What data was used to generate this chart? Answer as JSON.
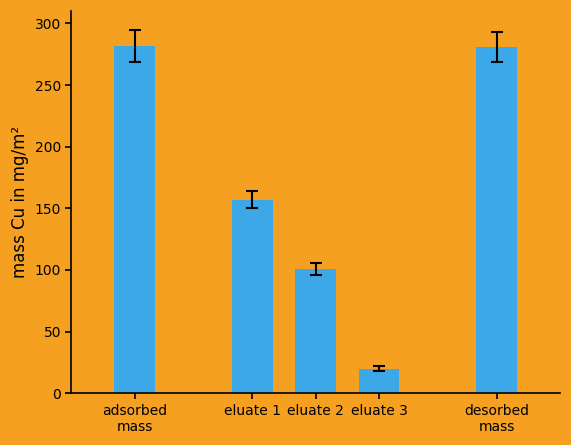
{
  "categories": [
    "adsorbed\nmass",
    "eluate 1",
    "eluate 2",
    "eluate 3",
    "desorbed\nmass"
  ],
  "values": [
    282,
    157,
    101,
    20,
    281
  ],
  "errors": [
    13,
    7,
    5,
    2,
    12
  ],
  "x_positions": [
    0.7,
    2.0,
    2.7,
    3.4,
    4.7
  ],
  "bar_color": "#3DA8E8",
  "background_color": "#F5A020",
  "ylabel": "mass Cu in mg/m²",
  "ylim": [
    0,
    310
  ],
  "yticks": [
    0,
    50,
    100,
    150,
    200,
    250,
    300
  ],
  "bar_width": 0.45,
  "error_capsize": 4,
  "error_linewidth": 1.5,
  "ylabel_fontsize": 12,
  "tick_fontsize": 10,
  "xlim": [
    0.0,
    5.4
  ]
}
